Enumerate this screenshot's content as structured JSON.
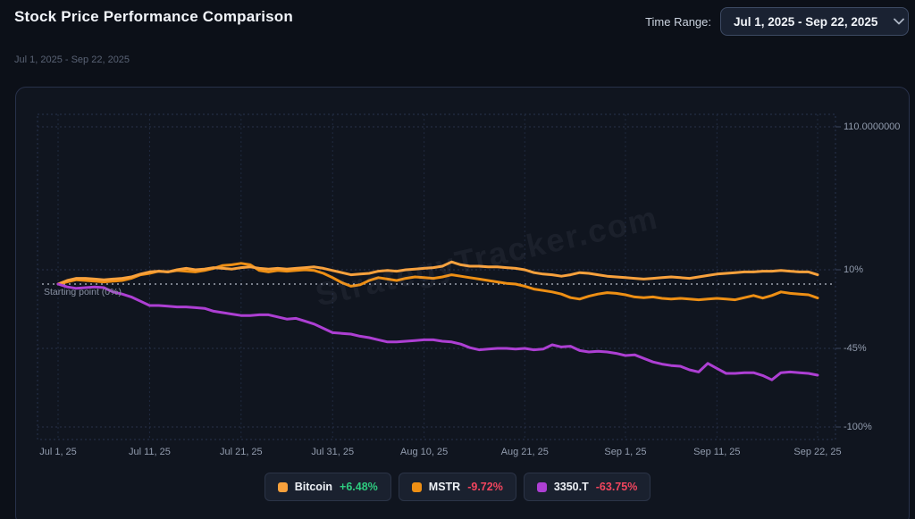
{
  "header": {
    "title": "Stock Price Performance Comparison",
    "time_range_label": "Time Range:",
    "time_range_value": "Jul 1, 2025 - Sep 22, 2025"
  },
  "subtitle": "Jul 1, 2025 - Sep 22, 2025",
  "watermark": "StrategyTracker.com",
  "chart_data": {
    "type": "line",
    "title": "Stock Price Performance Comparison",
    "unit": "percent_change_from_start",
    "x_start": "Jul 1, 2025",
    "x_end": "Sep 22, 2025",
    "x_range_days": 83,
    "grid": "dotted",
    "legend_position": "bottom",
    "ylim": [
      -108,
      119
    ],
    "x_ticks": [
      {
        "label": "Jul 1, 25",
        "day": 0
      },
      {
        "label": "Jul 11, 25",
        "day": 10
      },
      {
        "label": "Jul 21, 25",
        "day": 20
      },
      {
        "label": "Jul 31, 25",
        "day": 30
      },
      {
        "label": "Aug 10, 25",
        "day": 40
      },
      {
        "label": "Aug 21, 25",
        "day": 51
      },
      {
        "label": "Sep 1, 25",
        "day": 62
      },
      {
        "label": "Sep 11, 25",
        "day": 72
      },
      {
        "label": "Sep 22, 25",
        "day": 83
      }
    ],
    "y_ticks": [
      {
        "value": 110,
        "label": "110.0000000"
      },
      {
        "value": 10,
        "label": "10%"
      },
      {
        "value": -45,
        "label": "-45%"
      },
      {
        "value": -100,
        "label": "-100%"
      }
    ],
    "zero_line": {
      "value": 0,
      "label": "Starting point (0%)"
    },
    "series": [
      {
        "name": "Bitcoin",
        "color": "#f8a13c",
        "change_label": "+6.48%",
        "change_color": "#2ecb7f",
        "values": [
          0,
          2.5,
          4,
          4,
          3.5,
          3,
          3.5,
          4,
          5,
          7,
          8.5,
          9,
          8.5,
          10,
          11,
          10,
          10.5,
          11.5,
          11,
          10.5,
          11.5,
          12,
          11,
          10.5,
          11,
          10.5,
          11,
          11.5,
          12,
          11,
          9.5,
          8,
          6.5,
          7,
          7.5,
          9,
          9.5,
          9,
          10,
          10.5,
          11,
          11.5,
          12.5,
          15.5,
          13.5,
          12.5,
          12.5,
          12,
          12,
          11.5,
          11,
          10,
          8,
          7,
          6.5,
          5.5,
          6.5,
          8,
          7.5,
          6.5,
          5.5,
          5,
          4.5,
          4,
          3.5,
          4,
          4.5,
          5,
          4.5,
          4,
          5,
          6,
          7,
          7.5,
          8,
          8.5,
          8.5,
          9,
          9,
          9.5,
          9,
          8.5,
          8.5,
          6.48
        ]
      },
      {
        "name": "MSTR",
        "color": "#ee8f14",
        "change_label": "-9.72%",
        "change_color": "#f2455e",
        "values": [
          0,
          1.5,
          3,
          2.5,
          2,
          1.5,
          2,
          2.5,
          4,
          6.5,
          7.5,
          9,
          8.5,
          9.5,
          9,
          8.5,
          9.5,
          11,
          13,
          13.5,
          14.5,
          13.5,
          9.5,
          8.5,
          9.5,
          9,
          9.5,
          10,
          9.5,
          7.5,
          4.5,
          1,
          -1.5,
          -0.5,
          2.5,
          4.5,
          3.5,
          2.5,
          4,
          5,
          4.5,
          4,
          5,
          6.5,
          5.5,
          4.5,
          3.5,
          2.5,
          1.5,
          0.5,
          0,
          -1.5,
          -3.5,
          -4.5,
          -5.5,
          -7,
          -9.5,
          -10.5,
          -8.5,
          -7,
          -6,
          -6.5,
          -7.5,
          -9,
          -9.5,
          -9,
          -10,
          -10.5,
          -10,
          -10.5,
          -11,
          -10.5,
          -10,
          -10.5,
          -11,
          -9.5,
          -8,
          -9.8,
          -8,
          -5.5,
          -6.5,
          -7,
          -7.5,
          -9.72
        ]
      },
      {
        "name": "3350.T",
        "color": "#ad3fd3",
        "change_label": "-63.75%",
        "change_color": "#f2455e",
        "values": [
          0,
          -2,
          -3,
          -2.5,
          -2,
          -2.5,
          -5.5,
          -7,
          -9,
          -12,
          -15,
          -15,
          -15.5,
          -16,
          -16,
          -16.5,
          -17,
          -19,
          -20,
          -21,
          -22,
          -22,
          -21.5,
          -21.5,
          -23,
          -24.5,
          -24,
          -26,
          -28,
          -31,
          -34,
          -34.5,
          -35,
          -36.5,
          -37.5,
          -39,
          -40.5,
          -40.5,
          -40,
          -39.5,
          -39,
          -39,
          -40,
          -40.5,
          -42,
          -44.5,
          -46,
          -45.5,
          -45,
          -45,
          -45.5,
          -45,
          -46,
          -45.5,
          -42.5,
          -44,
          -43.5,
          -46.5,
          -47.5,
          -47,
          -47.5,
          -48.5,
          -50,
          -49.5,
          -52,
          -54.5,
          -56,
          -57,
          -57.5,
          -60,
          -61.5,
          -55.5,
          -59,
          -62.5,
          -62.5,
          -62,
          -62,
          -64,
          -67,
          -62,
          -61.5,
          -62,
          -62.5,
          -63.75
        ]
      }
    ]
  }
}
